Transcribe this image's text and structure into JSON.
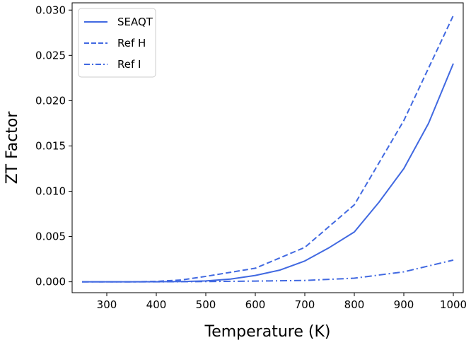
{
  "chart_data": {
    "type": "line",
    "title": "",
    "xlabel": "Temperature (K)",
    "ylabel": "ZT Factor",
    "xlim": [
      230,
      1020
    ],
    "ylim": [
      -0.0012,
      0.0308
    ],
    "xticks": [
      300,
      400,
      500,
      600,
      700,
      800,
      900,
      1000
    ],
    "xtick_labels": [
      "300",
      "400",
      "500",
      "600",
      "700",
      "800",
      "900",
      "1000"
    ],
    "yticks": [
      0.0,
      0.005,
      0.01,
      0.015,
      0.02,
      0.025,
      0.03
    ],
    "ytick_labels": [
      "0.000",
      "0.005",
      "0.010",
      "0.015",
      "0.020",
      "0.025",
      "0.030"
    ],
    "grid": false,
    "legend_position": "top-left",
    "line_color": "#4169e1",
    "series": [
      {
        "name": "SEAQT",
        "style": "solid",
        "x": [
          250,
          300,
          350,
          400,
          450,
          500,
          550,
          600,
          650,
          700,
          750,
          800,
          850,
          900,
          950,
          1000
        ],
        "y": [
          0.0,
          0.0,
          0.0,
          1e-05,
          3e-05,
          0.0001,
          0.0003,
          0.0007,
          0.0013,
          0.0023,
          0.0038,
          0.0055,
          0.0088,
          0.0125,
          0.0175,
          0.0241
        ]
      },
      {
        "name": "Ref H",
        "style": "dashed",
        "x": [
          250,
          300,
          350,
          400,
          450,
          500,
          600,
          700,
          800,
          900,
          1000
        ],
        "y": [
          0.0,
          0.0,
          0.0,
          5e-05,
          0.0002,
          0.0006,
          0.0015,
          0.0038,
          0.0085,
          0.0178,
          0.0294
        ]
      },
      {
        "name": "Ref I",
        "style": "dashdot",
        "x": [
          250,
          400,
          500,
          600,
          700,
          800,
          900,
          1000
        ],
        "y": [
          0.0,
          0.0,
          3e-05,
          8e-05,
          0.00015,
          0.0004,
          0.0011,
          0.0024
        ]
      }
    ]
  }
}
